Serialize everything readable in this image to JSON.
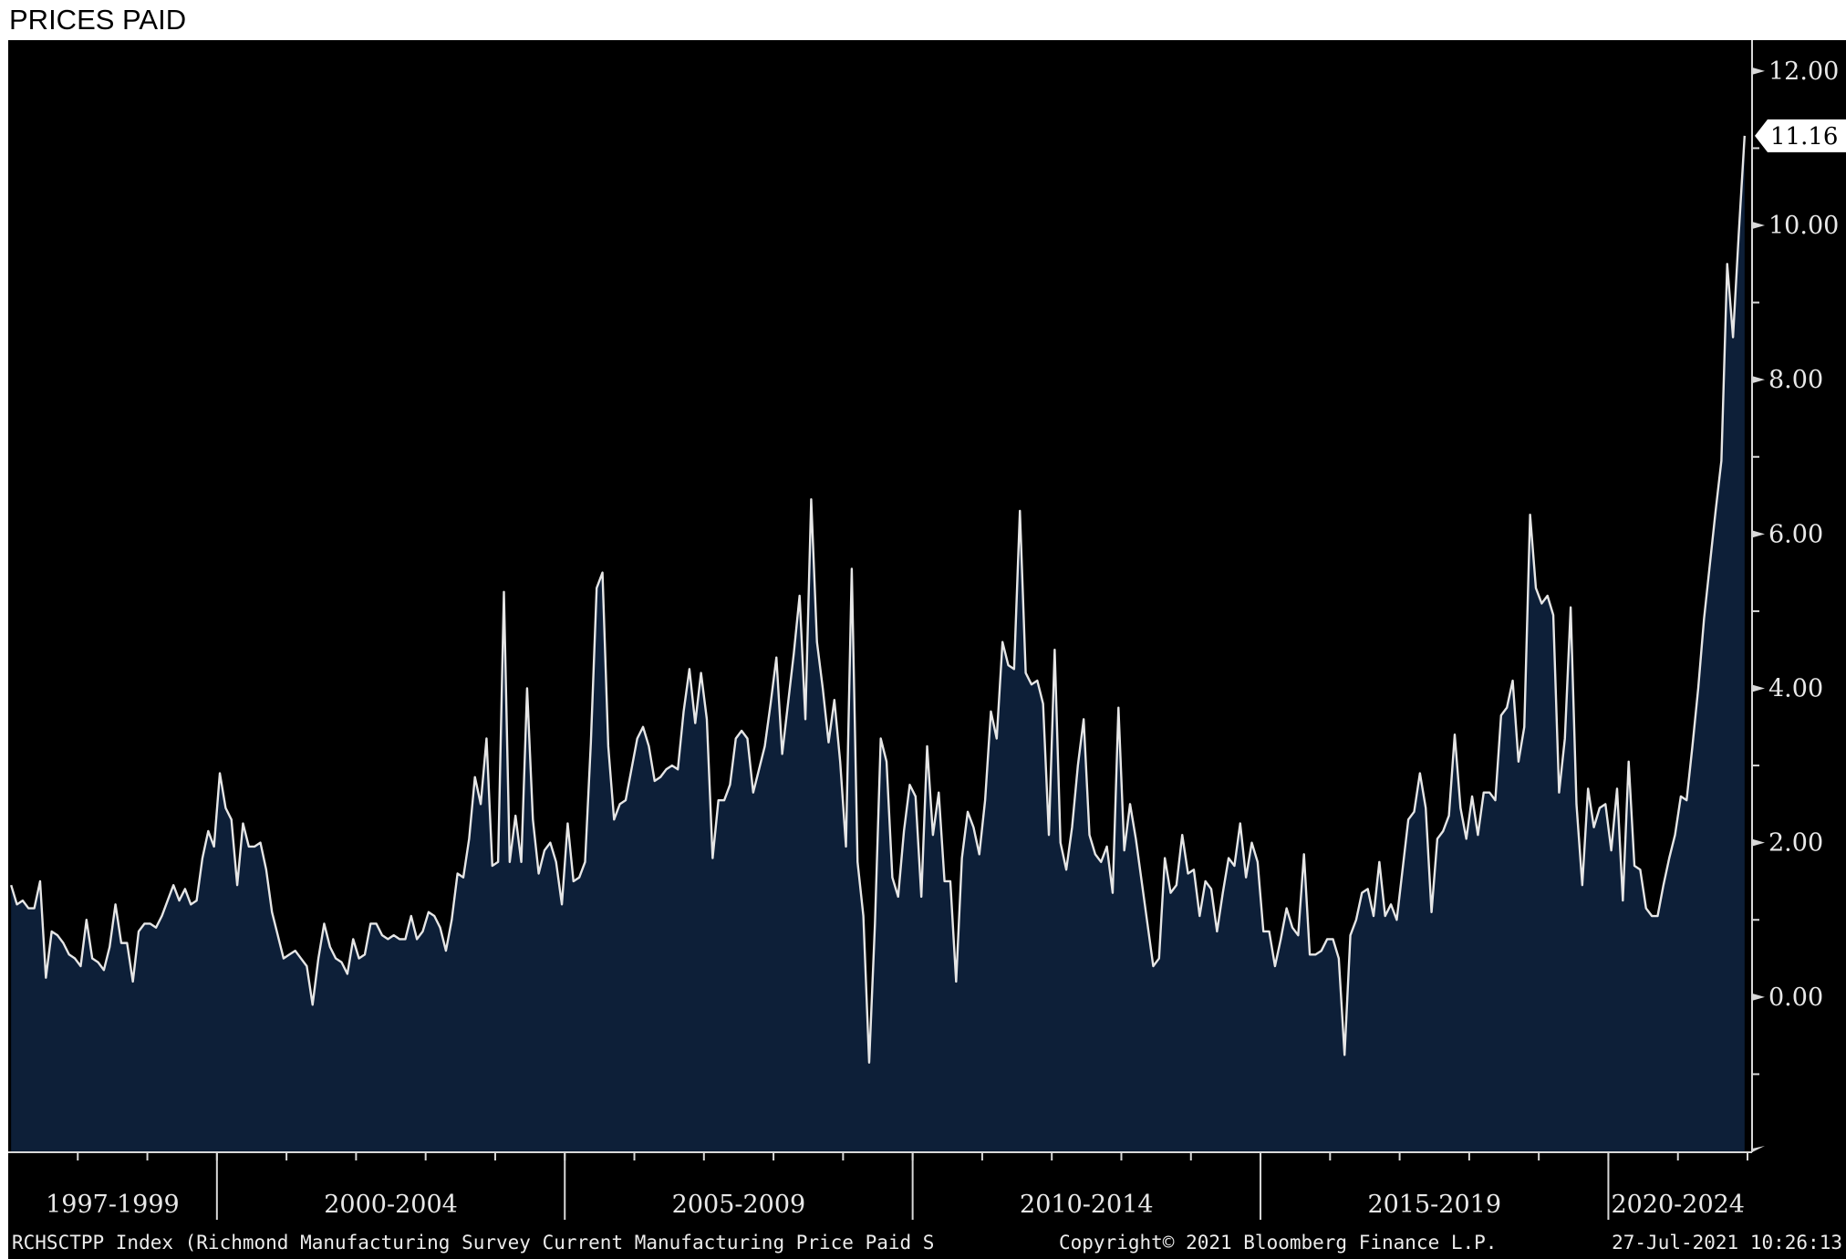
{
  "header": {
    "title": "PRICES PAID"
  },
  "footer": {
    "security": "RCHSCTPP Index (Richmond Manufacturing Survey Current Manufacturing Price Paid S",
    "copyright": "Copyright© 2021 Bloomberg Finance L.P.",
    "timestamp": "27-Jul-2021 10:26:13"
  },
  "colors": {
    "background": "#000000",
    "area_fill": "#0d1f38",
    "line": "#e6e6e6",
    "last_value_badge": "#ffffff"
  },
  "chart_data": {
    "type": "area",
    "title": "PRICES PAID",
    "x_start": "1997-01",
    "x_frequency": "monthly",
    "x_end": "2021-07",
    "xlim": [
      "1997-01",
      "2021-12"
    ],
    "ylim": [
      -2.0,
      12.4
    ],
    "y_ticks": [
      0.0,
      2.0,
      4.0,
      6.0,
      8.0,
      10.0,
      12.0
    ],
    "y_tick_labels": [
      "0.00",
      "2.00",
      "4.00",
      "6.00",
      "8.00",
      "10.00",
      "12.00"
    ],
    "y_axis_side": "right",
    "grid": false,
    "legend": "none",
    "period_labels": [
      "1997-1999",
      "2000-2004",
      "2005-2009",
      "2010-2014",
      "2015-2019",
      "2020-2024"
    ],
    "last_value": 11.16,
    "last_value_label": "11.16",
    "series": [
      {
        "values": [
          1.45,
          1.2,
          1.25,
          1.15,
          1.15,
          1.5,
          0.25,
          0.85,
          0.8,
          0.7,
          0.55,
          0.5,
          0.4,
          1.0,
          0.5,
          0.45,
          0.35,
          0.65,
          1.2,
          0.7,
          0.7,
          0.2,
          0.85,
          0.95,
          0.95,
          0.9,
          1.05,
          1.25,
          1.45,
          1.25,
          1.4,
          1.2,
          1.25,
          1.8,
          2.15,
          1.95,
          2.9,
          2.45,
          2.3,
          1.45,
          2.25,
          1.95,
          1.95,
          2.0,
          1.65,
          1.1,
          0.8,
          0.5,
          0.55,
          0.6,
          0.5,
          0.4,
          -0.1,
          0.5,
          0.95,
          0.65,
          0.5,
          0.45,
          0.3,
          0.75,
          0.5,
          0.55,
          0.95,
          0.95,
          0.8,
          0.75,
          0.8,
          0.75,
          0.75,
          1.05,
          0.75,
          0.85,
          1.1,
          1.05,
          0.9,
          0.6,
          1.0,
          1.6,
          1.55,
          2.05,
          2.85,
          2.5,
          3.35,
          1.7,
          1.75,
          5.25,
          1.75,
          2.35,
          1.75,
          4.0,
          2.3,
          1.6,
          1.9,
          2.0,
          1.75,
          1.2,
          2.25,
          1.5,
          1.55,
          1.75,
          3.3,
          5.3,
          5.5,
          3.25,
          2.3,
          2.5,
          2.55,
          2.95,
          3.35,
          3.5,
          3.25,
          2.8,
          2.85,
          2.95,
          3.0,
          2.95,
          3.7,
          4.25,
          3.55,
          4.2,
          3.6,
          1.8,
          2.55,
          2.55,
          2.75,
          3.35,
          3.45,
          3.35,
          2.65,
          2.95,
          3.25,
          3.8,
          4.4,
          3.15,
          3.8,
          4.45,
          5.2,
          3.6,
          6.45,
          4.6,
          4.0,
          3.3,
          3.85,
          3.05,
          1.95,
          5.55,
          1.75,
          1.05,
          -0.85,
          0.95,
          3.35,
          3.05,
          1.55,
          1.3,
          2.15,
          2.75,
          2.6,
          1.3,
          3.25,
          2.1,
          2.65,
          1.5,
          1.5,
          0.2,
          1.8,
          2.4,
          2.2,
          1.85,
          2.55,
          3.7,
          3.35,
          4.6,
          4.3,
          4.25,
          6.3,
          4.2,
          4.05,
          4.1,
          3.8,
          2.1,
          4.5,
          2.0,
          1.65,
          2.2,
          3.0,
          3.6,
          2.1,
          1.85,
          1.75,
          1.95,
          1.35,
          3.75,
          1.9,
          2.5,
          2.05,
          1.5,
          0.95,
          0.4,
          0.5,
          1.8,
          1.35,
          1.45,
          2.1,
          1.6,
          1.65,
          1.05,
          1.5,
          1.4,
          0.85,
          1.35,
          1.8,
          1.7,
          2.25,
          1.55,
          2.0,
          1.75,
          0.85,
          0.85,
          0.4,
          0.75,
          1.15,
          0.9,
          0.8,
          1.85,
          0.55,
          0.55,
          0.6,
          0.75,
          0.75,
          0.5,
          -0.75,
          0.8,
          1.0,
          1.35,
          1.4,
          1.05,
          1.75,
          1.05,
          1.2,
          1.0,
          1.65,
          2.3,
          2.4,
          2.9,
          2.45,
          1.1,
          2.05,
          2.15,
          2.35,
          3.4,
          2.45,
          2.05,
          2.6,
          2.1,
          2.65,
          2.65,
          2.55,
          3.65,
          3.75,
          4.1,
          3.05,
          3.5,
          6.25,
          5.3,
          5.1,
          5.2,
          4.95,
          2.65,
          3.35,
          5.05,
          2.5,
          1.45,
          2.7,
          2.2,
          2.45,
          2.5,
          1.9,
          2.7,
          1.25,
          3.05,
          1.7,
          1.65,
          1.15,
          1.05,
          1.05,
          1.45,
          1.8,
          2.1,
          2.6,
          2.55,
          3.25,
          4.0,
          4.9,
          5.6,
          6.3,
          6.95,
          9.5,
          8.55,
          9.9,
          11.16
        ]
      }
    ]
  }
}
